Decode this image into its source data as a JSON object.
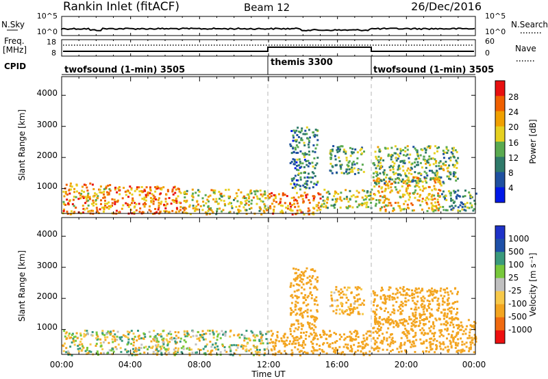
{
  "header": {
    "station": "Rankin Inlet (fitACF)",
    "beam": "Beam 12",
    "date": "26/Dec/2016"
  },
  "noise_panel": {
    "left_label": "N.Sky",
    "right_label": "N.Search",
    "left_ticks": [
      "10^5",
      "10^0"
    ],
    "right_ticks": [
      "10^5",
      "10^0"
    ]
  },
  "freq_panel": {
    "left_label_line1": "Freq.",
    "left_label_line2": "[MHz]",
    "right_label": "Nave",
    "left_ticks": [
      "18",
      "8"
    ],
    "right_ticks": [
      "60",
      "0"
    ]
  },
  "cpid_panel": {
    "label": "CPID",
    "segments": [
      {
        "label": "twofsound (1-min) 3505",
        "start_hour": 0,
        "end_hour": 12
      },
      {
        "label": "themis 3300",
        "start_hour": 12,
        "end_hour": 18
      },
      {
        "label": "twofsound (1-min) 3505",
        "start_hour": 18,
        "end_hour": 24
      }
    ]
  },
  "colors": {
    "power": [
      "#0018e8",
      "#1f50a0",
      "#2f7a6a",
      "#5aaa50",
      "#e6d020",
      "#f0a000",
      "#f06000",
      "#e81010"
    ],
    "velocity": [
      "#ee1010",
      "#f06a10",
      "#f3a520",
      "#f7c94a",
      "#c0c0c0",
      "#78c83c",
      "#3a9a7c",
      "#1e50a8",
      "#1e32c8"
    ],
    "scatter_ground": "#b4b4b4",
    "divider": "#b4b4b4"
  },
  "chart_data": [
    {
      "type": "heatmap",
      "panel": "power",
      "ylabel": "Slant Range [km]",
      "ylim": [
        200,
        4600
      ],
      "yticks": [
        "1000",
        "2000",
        "3000",
        "4000"
      ],
      "colorbar": {
        "label": "Power [dB]",
        "ticks": [
          "4",
          "8",
          "12",
          "16",
          "20",
          "24",
          "28"
        ],
        "range": [
          0,
          32
        ]
      },
      "bands": [
        {
          "x": [
            0,
            3
          ],
          "y": [
            200,
            1200
          ],
          "value": 22
        },
        {
          "x": [
            3,
            7
          ],
          "y": [
            200,
            1100
          ],
          "value": 24
        },
        {
          "x": [
            7,
            12
          ],
          "y": [
            200,
            1000
          ],
          "value": 18
        },
        {
          "x": [
            12,
            15
          ],
          "y": [
            200,
            900
          ],
          "value": 24
        },
        {
          "x": [
            15,
            18
          ],
          "y": [
            400,
            1000
          ],
          "value": 16
        },
        {
          "x": [
            18,
            22
          ],
          "y": [
            300,
            1400
          ],
          "value": 20
        },
        {
          "x": [
            22,
            24
          ],
          "y": [
            300,
            1000
          ],
          "value": 12
        },
        {
          "x": [
            13.2,
            14.8
          ],
          "y": [
            1000,
            3000
          ],
          "value": 10
        },
        {
          "x": [
            15.5,
            17.5
          ],
          "y": [
            1500,
            2400
          ],
          "value": 12
        },
        {
          "x": [
            18,
            23
          ],
          "y": [
            1200,
            2400
          ],
          "value": 14
        }
      ]
    },
    {
      "type": "heatmap",
      "panel": "velocity",
      "ylabel": "Slant Range [km]",
      "xlabel": "Time UT",
      "ylim": [
        200,
        4600
      ],
      "yticks": [
        "1000",
        "2000",
        "3000",
        "4000"
      ],
      "xticks": [
        "00:00",
        "04:00",
        "08:00",
        "12:00",
        "16:00",
        "20:00",
        "00:00"
      ],
      "colorbar": {
        "label": "Velocity [m s⁻¹]",
        "ticks": [
          "1000",
          "500",
          "100",
          "25",
          "-25",
          "-100",
          "-500",
          "-1000"
        ]
      },
      "bands": [
        {
          "x": [
            0,
            12
          ],
          "y": [
            200,
            1000
          ],
          "value": 0
        },
        {
          "x": [
            12,
            18
          ],
          "y": [
            200,
            1000
          ],
          "value": -300
        },
        {
          "x": [
            18,
            24
          ],
          "y": [
            300,
            1400
          ],
          "value": -300
        },
        {
          "x": [
            13.2,
            14.8
          ],
          "y": [
            1000,
            3000
          ],
          "value": -300
        },
        {
          "x": [
            15.5,
            17.5
          ],
          "y": [
            1500,
            2400
          ],
          "value": -200
        },
        {
          "x": [
            18,
            23
          ],
          "y": [
            1200,
            2400
          ],
          "value": -300
        }
      ]
    }
  ]
}
